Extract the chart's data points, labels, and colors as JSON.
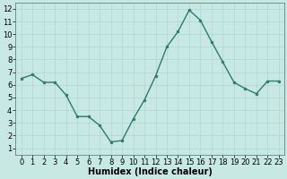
{
  "x": [
    0,
    1,
    2,
    3,
    4,
    5,
    6,
    7,
    8,
    9,
    10,
    11,
    12,
    13,
    14,
    15,
    16,
    17,
    18,
    19,
    20,
    21,
    22,
    23
  ],
  "y": [
    6.5,
    6.8,
    6.2,
    6.2,
    5.2,
    3.5,
    3.5,
    2.8,
    1.5,
    1.6,
    3.3,
    4.8,
    6.7,
    9.0,
    10.2,
    11.9,
    11.1,
    9.4,
    7.8,
    6.2,
    5.7,
    5.3,
    6.3,
    6.3
  ],
  "xlabel": "Humidex (Indice chaleur)",
  "ylim_min": 0.5,
  "ylim_max": 12.5,
  "xlim_min": -0.5,
  "xlim_max": 23.5,
  "yticks": [
    1,
    2,
    3,
    4,
    5,
    6,
    7,
    8,
    9,
    10,
    11,
    12
  ],
  "xticks": [
    0,
    1,
    2,
    3,
    4,
    5,
    6,
    7,
    8,
    9,
    10,
    11,
    12,
    13,
    14,
    15,
    16,
    17,
    18,
    19,
    20,
    21,
    22,
    23
  ],
  "line_color": "#2d7a6e",
  "marker_color": "#2d7a6e",
  "bg_color": "#c8e8e4",
  "grid_color": "#b0d8d2",
  "fig_bg": "#c8e8e4",
  "xlabel_fontsize": 7,
  "tick_fontsize": 6,
  "linewidth": 1.0,
  "markersize": 2.0
}
